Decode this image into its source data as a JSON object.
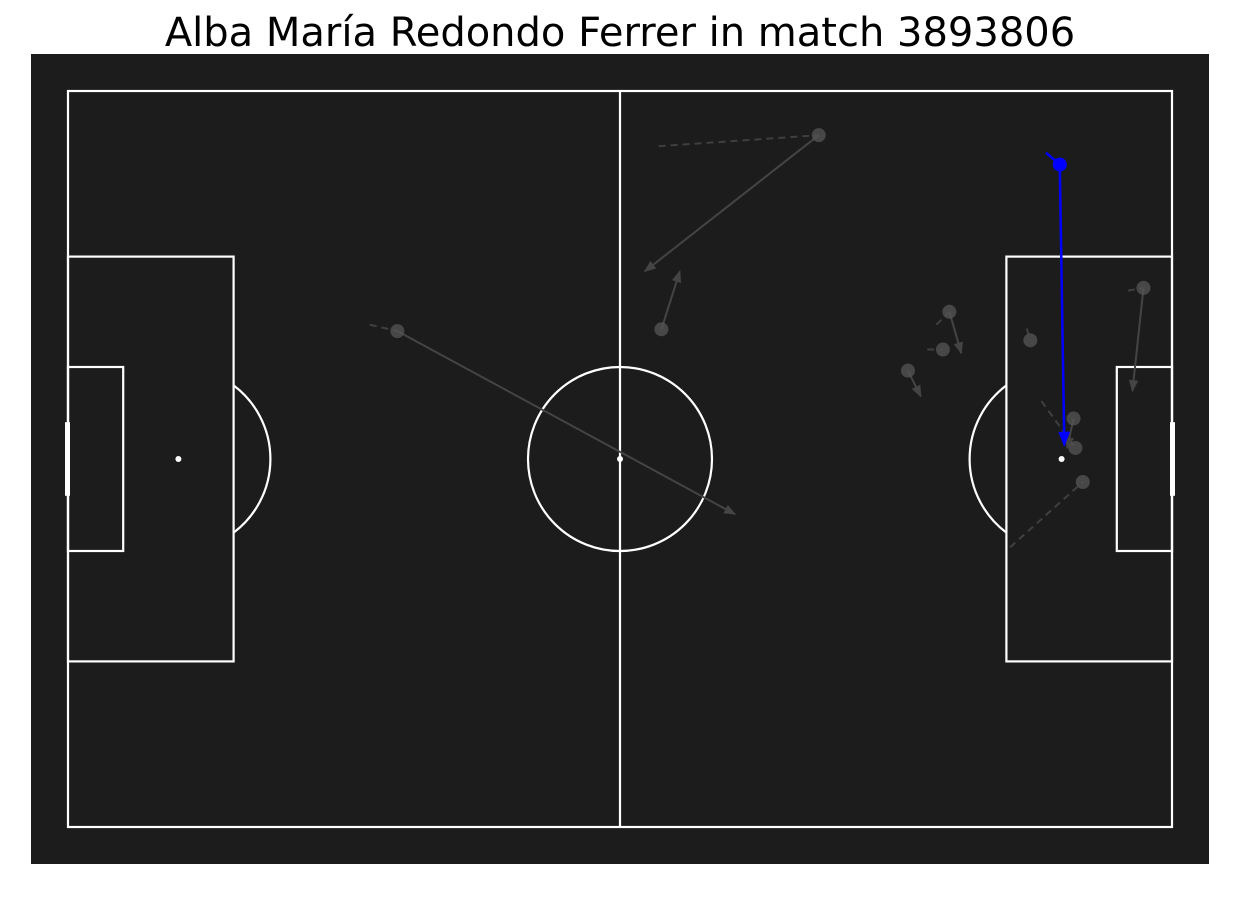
{
  "title": "Alba María Redondo Ferrer in match 3893806",
  "colors": {
    "background": "#ffffff",
    "pitch": "#1c1c1c",
    "lines": "#ffffff",
    "highlight": "#0000ff",
    "faded": "#555555"
  },
  "chart_data": {
    "type": "scatter",
    "pitch": {
      "length": 120,
      "width": 80,
      "units": "statsbomb"
    },
    "events": [
      {
        "start": [
          81.6,
          4.8
        ],
        "end": [
          62.7,
          19.6
        ],
        "carry": [
          64.2,
          6.0
        ],
        "highlight": false
      },
      {
        "start": [
          107.8,
          8.0
        ],
        "end": [
          108.3,
          38.5
        ],
        "carry": [
          106.3,
          6.7
        ],
        "highlight": true
      },
      {
        "start": [
          35.8,
          26.1
        ],
        "end": [
          72.5,
          46.0
        ],
        "carry": [
          32.8,
          25.4
        ],
        "highlight": false
      },
      {
        "start": [
          64.5,
          25.9
        ],
        "end": [
          66.5,
          19.6
        ],
        "highlight": false
      },
      {
        "start": [
          95.8,
          24.0
        ],
        "end": [
          97.1,
          28.5
        ],
        "carry": [
          94.4,
          25.4
        ],
        "highlight": false
      },
      {
        "start": [
          95.1,
          28.1
        ],
        "carry": [
          93.4,
          28.1
        ],
        "highlight": false
      },
      {
        "start": [
          91.3,
          30.4
        ],
        "end": [
          92.7,
          33.2
        ],
        "highlight": false
      },
      {
        "start": [
          104.6,
          27.1
        ],
        "carry": [
          104.2,
          25.8
        ],
        "highlight": false
      },
      {
        "start": [
          116.9,
          21.4
        ],
        "end": [
          115.7,
          32.6
        ],
        "carry": [
          115.2,
          21.7
        ],
        "highlight": false
      },
      {
        "start": [
          109.3,
          35.6
        ],
        "end": [
          108.6,
          38.8
        ],
        "highlight": false
      },
      {
        "start": [
          109.5,
          38.8
        ],
        "carry": [
          105.8,
          33.7
        ],
        "highlight": false
      },
      {
        "start": [
          110.3,
          42.5
        ],
        "carry": [
          102.4,
          49.6
        ],
        "highlight": false
      }
    ]
  }
}
